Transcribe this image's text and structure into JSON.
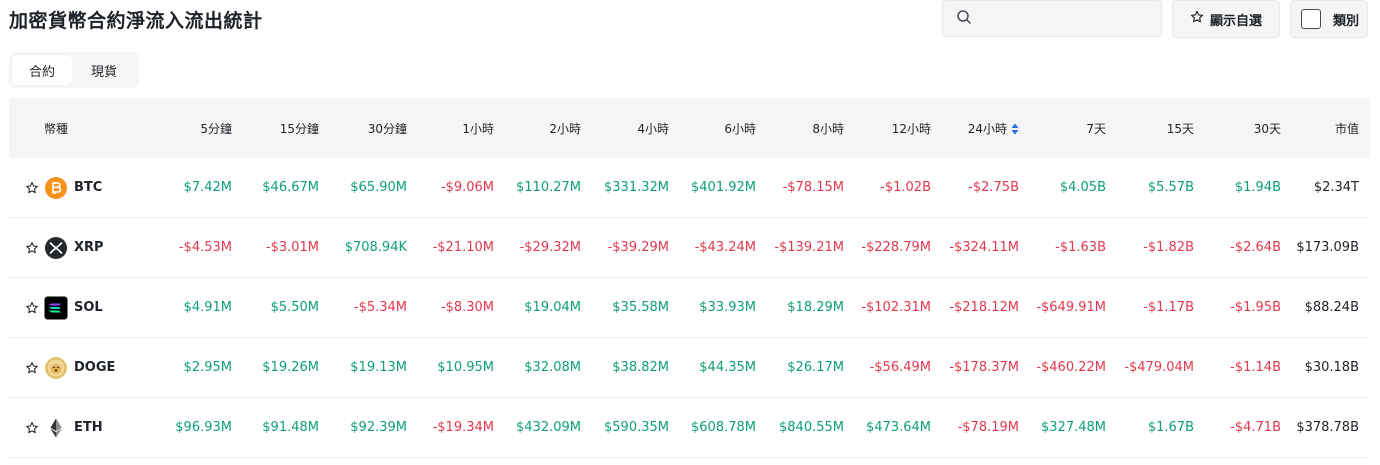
{
  "page": {
    "title": "加密貨幣合約淨流入流出統計"
  },
  "toolbar": {
    "search_placeholder": "",
    "favorites_label": "顯示自選",
    "category_label": "類別"
  },
  "tabs": [
    {
      "label": "合約",
      "active": true
    },
    {
      "label": "現貨",
      "active": false
    }
  ],
  "table": {
    "columns": [
      "幣種",
      "5分鐘",
      "15分鐘",
      "30分鐘",
      "1小時",
      "2小時",
      "4小時",
      "6小時",
      "8小時",
      "12小時",
      "24小時",
      "7天",
      "15天",
      "30天",
      "市值"
    ],
    "sorted_column": "24小時",
    "rows": [
      {
        "symbol": "BTC",
        "icon": "btc-logo-icon",
        "values": [
          "$7.42M",
          "$46.67M",
          "$65.90M",
          "-$9.06M",
          "$110.27M",
          "$331.32M",
          "$401.92M",
          "-$78.15M",
          "-$1.02B",
          "-$2.75B",
          "$4.05B",
          "$5.57B",
          "$1.94B"
        ],
        "market_cap": "$2.34T"
      },
      {
        "symbol": "XRP",
        "icon": "xrp-logo-icon",
        "values": [
          "-$4.53M",
          "-$3.01M",
          "$708.94K",
          "-$21.10M",
          "-$29.32M",
          "-$39.29M",
          "-$43.24M",
          "-$139.21M",
          "-$228.79M",
          "-$324.11M",
          "-$1.63B",
          "-$1.82B",
          "-$2.64B"
        ],
        "market_cap": "$173.09B"
      },
      {
        "symbol": "SOL",
        "icon": "sol-logo-icon",
        "values": [
          "$4.91M",
          "$5.50M",
          "-$5.34M",
          "-$8.30M",
          "$19.04M",
          "$35.58M",
          "$33.93M",
          "$18.29M",
          "-$102.31M",
          "-$218.12M",
          "-$649.91M",
          "-$1.17B",
          "-$1.95B"
        ],
        "market_cap": "$88.24B"
      },
      {
        "symbol": "DOGE",
        "icon": "doge-logo-icon",
        "values": [
          "$2.95M",
          "$19.26M",
          "$19.13M",
          "$10.95M",
          "$32.08M",
          "$38.82M",
          "$44.35M",
          "$26.17M",
          "-$56.49M",
          "-$178.37M",
          "-$460.22M",
          "-$479.04M",
          "-$1.14B"
        ],
        "market_cap": "$30.18B"
      },
      {
        "symbol": "ETH",
        "icon": "eth-logo-icon",
        "values": [
          "$96.93M",
          "$91.48M",
          "$92.39M",
          "-$19.34M",
          "$432.09M",
          "$590.35M",
          "$608.78M",
          "$840.55M",
          "$473.64M",
          "-$78.19M",
          "$327.48M",
          "$1.67B",
          "-$4.71B"
        ],
        "market_cap": "$378.78B"
      }
    ]
  },
  "colors": {
    "positive": "#0e9f7a",
    "negative": "#e4384f",
    "header_bg": "#f5f5f5"
  }
}
